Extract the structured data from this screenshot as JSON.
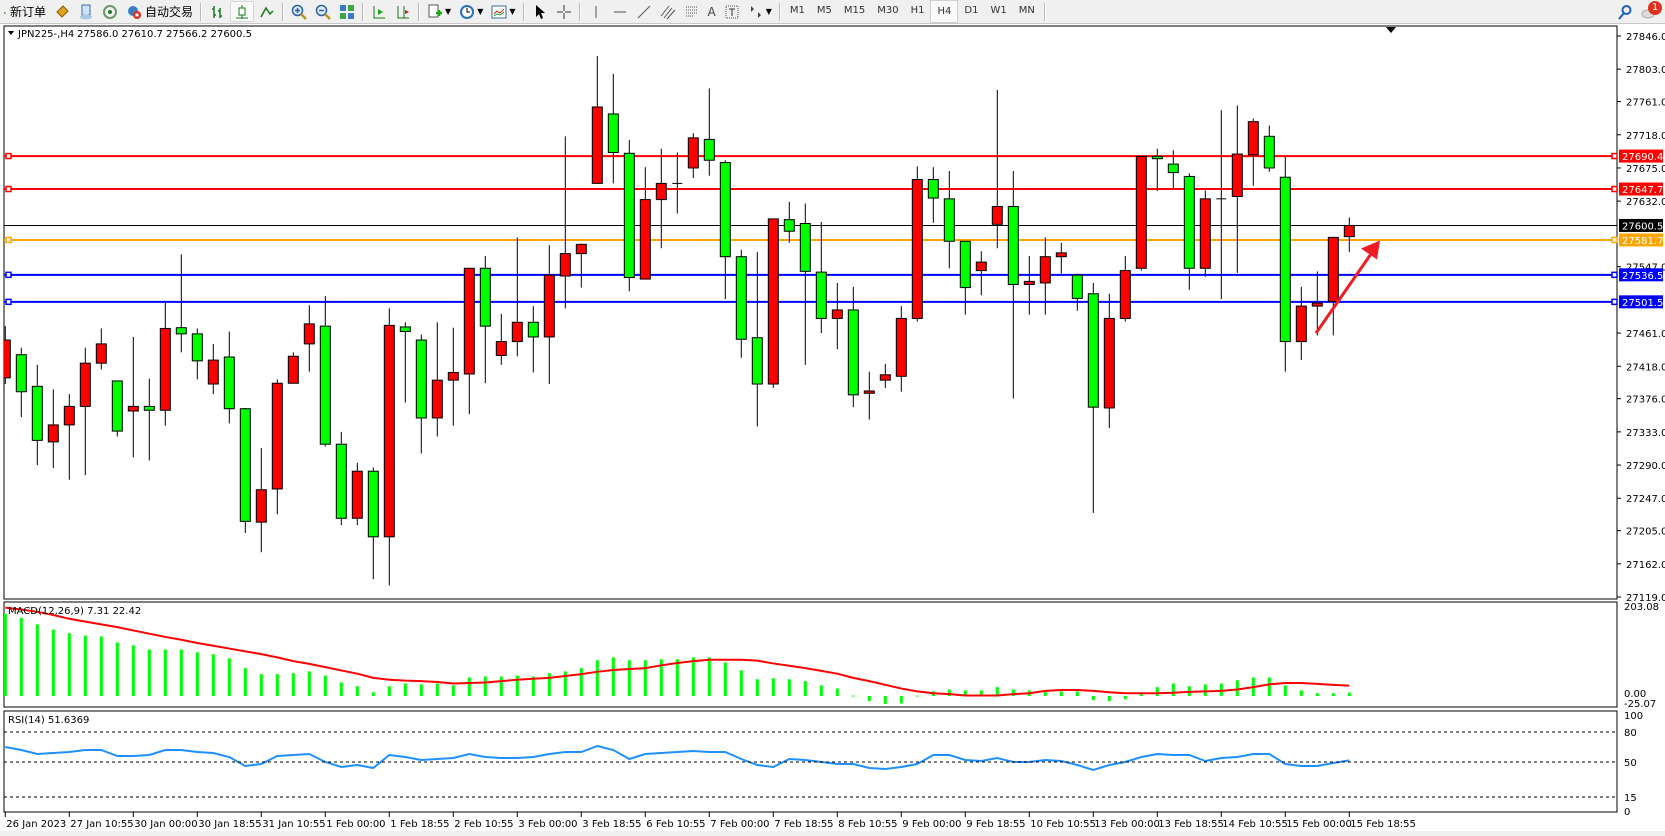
{
  "toolbar": {
    "new_order": "新订单",
    "auto_trading": "自动交易",
    "periods": [
      "M1",
      "M5",
      "M15",
      "M30",
      "H1",
      "H4",
      "D1",
      "W1",
      "MN"
    ],
    "active_period": "H4",
    "notification_count": "1",
    "icons": [
      "new-order-icon",
      "market-watch-icon",
      "navigator-icon",
      "signals-icon",
      "auto-trading-icon",
      "bar-chart-icon",
      "candlestick-icon",
      "line-chart-icon",
      "zoom-in-icon",
      "zoom-out-icon",
      "tile-windows-icon",
      "auto-scroll-icon",
      "chart-shift-icon",
      "indicators-icon",
      "periods-icon",
      "templates-icon",
      "cursor-icon",
      "crosshair-icon",
      "vertical-line-icon",
      "horizontal-line-icon",
      "trendline-icon",
      "equidistant-channel-icon",
      "fibonacci-icon",
      "text-icon",
      "text-label-icon",
      "arrows-icon",
      "search-icon",
      "notification-icon"
    ]
  },
  "chart_header": {
    "symbol": "JPN225-,H4",
    "ohlc": "27586.0 27610.7 27566.2 27600.5"
  },
  "colors": {
    "bull_candle": "#ff0000",
    "bear_candle": "#00ff00",
    "resistance": "#ff0000",
    "pivot": "#ffa500",
    "support": "#0000ff",
    "macd_hist": "#00ff00",
    "macd_signal": "#ff0000",
    "rsi_line": "#1e90ff"
  },
  "chart_data": [
    {
      "type": "candlestick",
      "symbol": "JPN225-",
      "timeframe": "H4",
      "ylim": [
        27119.0,
        27846.0
      ],
      "y_ticks": [
        "27846.0",
        "27803.0",
        "27761.0",
        "27718.0",
        "27675.0",
        "27632.0",
        "27547.0",
        "27461.0",
        "27418.0",
        "27376.0",
        "27333.0",
        "27290.0",
        "27247.0",
        "27205.0",
        "27162.0",
        "27119.0"
      ],
      "x_tick_labels": [
        "26 Jan 2023",
        "27 Jan 10:55",
        "30 Jan 00:00",
        "30 Jan 18:55",
        "31 Jan 10:55",
        "1 Feb 00:00",
        "1 Feb 18:55",
        "2 Feb 10:55",
        "3 Feb 00:00",
        "3 Feb 18:55",
        "6 Feb 10:55",
        "7 Feb 00:00",
        "7 Feb 18:55",
        "8 Feb 10:55",
        "9 Feb 00:00",
        "9 Feb 18:55",
        "10 Feb 10:55",
        "13 Feb 00:00",
        "13 Feb 18:55",
        "14 Feb 10:55",
        "15 Feb 00:00",
        "15 Feb 18:55"
      ],
      "ohlc_fields": [
        "open",
        "high",
        "low",
        "close"
      ],
      "candles": [
        [
          27403,
          27470,
          27395,
          27452
        ],
        [
          27433,
          27442,
          27352,
          27385
        ],
        [
          27392,
          27420,
          27290,
          27322
        ],
        [
          27320,
          27388,
          27286,
          27342
        ],
        [
          27342,
          27382,
          27271,
          27366
        ],
        [
          27366,
          27442,
          27277,
          27422
        ],
        [
          27422,
          27467,
          27414,
          27447
        ],
        [
          27399,
          27399,
          27327,
          27334
        ],
        [
          27360,
          27456,
          27300,
          27366
        ],
        [
          27366,
          27402,
          27296,
          27361
        ],
        [
          27361,
          27500,
          27341,
          27467
        ],
        [
          27468,
          27563,
          27436,
          27460
        ],
        [
          27460,
          27467,
          27401,
          27425
        ],
        [
          27395,
          27447,
          27382,
          27426
        ],
        [
          27430,
          27463,
          27344,
          27363
        ],
        [
          27363,
          27364,
          27202,
          27217
        ],
        [
          27216,
          27312,
          27177,
          27258
        ],
        [
          27259,
          27401,
          27226,
          27396
        ],
        [
          27396,
          27436,
          27396,
          27431
        ],
        [
          27447,
          27497,
          27411,
          27473
        ],
        [
          27470,
          27509,
          27314,
          27317
        ],
        [
          27317,
          27333,
          27212,
          27221
        ],
        [
          27221,
          27293,
          27212,
          27282
        ],
        [
          27282,
          27287,
          27142,
          27197
        ],
        [
          27197,
          27493,
          27134,
          27471
        ],
        [
          27469,
          27475,
          27371,
          27463
        ],
        [
          27452,
          27459,
          27305,
          27351
        ],
        [
          27351,
          27475,
          27327,
          27400
        ],
        [
          27400,
          27468,
          27341,
          27410
        ],
        [
          27408,
          27545,
          27356,
          27545
        ],
        [
          27545,
          27561,
          27396,
          27470
        ],
        [
          27432,
          27486,
          27420,
          27450
        ],
        [
          27450,
          27585,
          27431,
          27475
        ],
        [
          27475,
          27496,
          27410,
          27456
        ],
        [
          27456,
          27575,
          27395,
          27536
        ],
        [
          27535,
          27716,
          27493,
          27564
        ],
        [
          27564,
          27577,
          27520,
          27576
        ],
        [
          27655,
          27820,
          27655,
          27754
        ],
        [
          27745,
          27797,
          27655,
          27695
        ],
        [
          27694,
          27711,
          27515,
          27533
        ],
        [
          27531,
          27676,
          27531,
          27634
        ],
        [
          27634,
          27700,
          27571,
          27655
        ],
        [
          27655,
          27695,
          27616,
          27655
        ],
        [
          27675,
          27720,
          27662,
          27714
        ],
        [
          27712,
          27778,
          27665,
          27685
        ],
        [
          27682,
          27685,
          27505,
          27560
        ],
        [
          27560,
          27569,
          27429,
          27453
        ],
        [
          27455,
          27566,
          27340,
          27395
        ],
        [
          27395,
          27609,
          27390,
          27609
        ],
        [
          27608,
          27631,
          27578,
          27593
        ],
        [
          27603,
          27629,
          27420,
          27541
        ],
        [
          27540,
          27605,
          27461,
          27480
        ],
        [
          27480,
          27526,
          27440,
          27491
        ],
        [
          27491,
          27521,
          27365,
          27381
        ],
        [
          27383,
          27411,
          27349,
          27386
        ],
        [
          27400,
          27421,
          27390,
          27407
        ],
        [
          27405,
          27496,
          27385,
          27480
        ],
        [
          27480,
          27677,
          27476,
          27660
        ],
        [
          27660,
          27676,
          27604,
          27636
        ],
        [
          27635,
          27671,
          27545,
          27580
        ],
        [
          27580,
          27580,
          27485,
          27520
        ],
        [
          27542,
          27567,
          27510,
          27553
        ],
        [
          27602,
          27776,
          27571,
          27625
        ],
        [
          27625,
          27671,
          27376,
          27524
        ],
        [
          27524,
          27561,
          27485,
          27528
        ],
        [
          27526,
          27585,
          27485,
          27560
        ],
        [
          27560,
          27578,
          27538,
          27565
        ],
        [
          27536,
          27538,
          27490,
          27506
        ],
        [
          27512,
          27526,
          27228,
          27365
        ],
        [
          27364,
          27512,
          27338,
          27480
        ],
        [
          27480,
          27561,
          27476,
          27542
        ],
        [
          27545,
          27690,
          27542,
          27690
        ],
        [
          27690,
          27700,
          27645,
          27687
        ],
        [
          27680,
          27698,
          27649,
          27669
        ],
        [
          27664,
          27668,
          27517,
          27545
        ],
        [
          27545,
          27646,
          27534,
          27635
        ],
        [
          27635,
          27750,
          27505,
          27635
        ],
        [
          27638,
          27756,
          27539,
          27693
        ],
        [
          27692,
          27739,
          27652,
          27735
        ],
        [
          27716,
          27730,
          27670,
          27675
        ],
        [
          27663,
          27690,
          27411,
          27450
        ],
        [
          27450,
          27521,
          27426,
          27496
        ],
        [
          27496,
          27541,
          27458,
          27500
        ],
        [
          27502,
          27586,
          27458,
          27585
        ],
        [
          27586.0,
          27610.7,
          27566.2,
          27600.5
        ]
      ],
      "current_price": {
        "value": 27600.5,
        "label": "27600.5"
      },
      "horizontal_lines": [
        {
          "value": 27690.4,
          "label": "27690.4",
          "color": "#ff0000"
        },
        {
          "value": 27647.7,
          "label": "27647.7",
          "color": "#ff0000"
        },
        {
          "value": 27581.7,
          "label": "27581.7",
          "color": "#ffa500"
        },
        {
          "value": 27536.5,
          "label": "27536.5",
          "color": "#0000ff"
        },
        {
          "value": 27501.5,
          "label": "27501.5",
          "color": "#0000ff"
        }
      ],
      "annotation": {
        "type": "arrow",
        "direction": "up-right",
        "color": "#ee1c25",
        "from_price": 27461,
        "to_price": 27581
      }
    },
    {
      "type": "bar+line",
      "title": "MACD(12,26,9) 7.31 22.42",
      "ylim": [
        -25.07,
        203.08
      ],
      "y_ticks": [
        "203.08",
        "0.00",
        "-25.07"
      ],
      "histogram": [
        177,
        168,
        154,
        143,
        135,
        130,
        128,
        115,
        109,
        100,
        100,
        100,
        94,
        90,
        81,
        60,
        47,
        47,
        49,
        53,
        44,
        29,
        21,
        8,
        21,
        27,
        25,
        27,
        23,
        40,
        42,
        42,
        44,
        42,
        49,
        53,
        60,
        77,
        83,
        77,
        77,
        79,
        79,
        83,
        83,
        72,
        55,
        36,
        38,
        36,
        32,
        23,
        16,
        1,
        -11,
        -17,
        -16,
        1,
        10,
        14,
        12,
        12,
        19,
        14,
        12,
        10,
        10,
        10,
        -9,
        -11,
        -7,
        4,
        19,
        27,
        21,
        25,
        27,
        34,
        40,
        40,
        23,
        12,
        6,
        6,
        7.31
      ],
      "signal": [
        190,
        186,
        181,
        174,
        166,
        160,
        154,
        148,
        141,
        134,
        127,
        121,
        114,
        108,
        102,
        96,
        90,
        83,
        75,
        69,
        62,
        55,
        48,
        39,
        35,
        33,
        32,
        30,
        27,
        28,
        29,
        32,
        35,
        37,
        39,
        43,
        47,
        52,
        56,
        58,
        60,
        66,
        71,
        75,
        78,
        78,
        78,
        76,
        70,
        65,
        60,
        54,
        48,
        39,
        32,
        24,
        16,
        10,
        6,
        4,
        1,
        1,
        1,
        4,
        6,
        11,
        13,
        13,
        11,
        8,
        6,
        6,
        6,
        7,
        9,
        10,
        11,
        14,
        19,
        25,
        28,
        28,
        26,
        24,
        22.42
      ]
    },
    {
      "type": "line",
      "title": "RSI(14) 51.6369",
      "ylim": [
        0,
        100
      ],
      "y_ticks": [
        "100",
        "80",
        "50",
        "15",
        "0"
      ],
      "levels": [
        80,
        50,
        15
      ],
      "values": [
        65,
        62,
        58,
        59,
        60,
        62,
        62,
        56,
        56,
        57,
        62,
        62,
        60,
        59,
        55,
        46,
        48,
        56,
        57,
        58,
        50,
        45,
        47,
        44,
        57,
        55,
        52,
        53,
        54,
        58,
        55,
        54,
        54,
        55,
        58,
        60,
        60,
        66,
        62,
        53,
        58,
        59,
        60,
        61,
        60,
        60,
        53,
        47,
        45,
        53,
        52,
        50,
        48,
        48,
        44,
        43,
        45,
        48,
        57,
        57,
        52,
        51,
        54,
        50,
        50,
        52,
        51,
        47,
        42,
        47,
        50,
        55,
        58,
        57,
        57,
        51,
        54,
        55,
        58,
        58,
        48,
        46,
        46,
        49,
        51.6369
      ]
    }
  ]
}
